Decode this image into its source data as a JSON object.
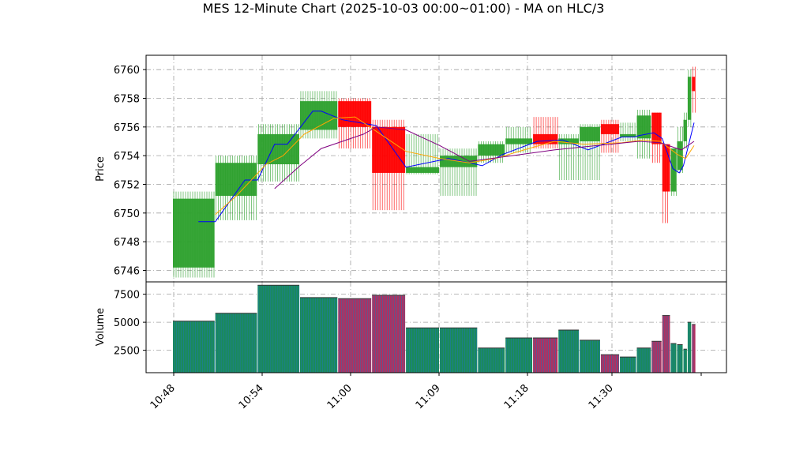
{
  "chart_data": {
    "type": "candlestick",
    "title": "MES 12-Minute Chart (2025-10-03 00:00~01:00) - MA on HLC/3",
    "x_tick_labels": [
      "10:48",
      "10:54",
      "11:00",
      "11:09",
      "11:18",
      "11:30"
    ],
    "price_panel": {
      "ylabel": "Price",
      "ylim": [
        6745.2,
        6761.0
      ],
      "yticks": [
        6746,
        6748,
        6750,
        6752,
        6754,
        6756,
        6758,
        6760
      ],
      "grid": true
    },
    "volume_panel": {
      "ylabel": "Volume",
      "ylim": [
        500,
        8600
      ],
      "yticks": [
        2500,
        5000,
        7500
      ],
      "yticklabels": [
        "2500",
        "5000",
        "7500"
      ],
      "grid": true
    },
    "colors": {
      "up": "#2ca02c",
      "down": "#ff0000",
      "volume_up": "#1a8a5a",
      "volume_down": "#b03060",
      "volume_edge": "#1f77b4",
      "ma_blue": "#0000ff",
      "ma_orange": "#ffa500",
      "ma_purple": "#800080",
      "grid": "#a0a0a0"
    },
    "candles": [
      {
        "t0": 0.0,
        "t1": 1.0,
        "open": 6746.2,
        "high": 6751.5,
        "low": 6745.5,
        "close": 6751.0,
        "volume": 5100
      },
      {
        "t0": 1.0,
        "t1": 2.0,
        "open": 6751.2,
        "high": 6754.0,
        "low": 6749.5,
        "close": 6753.5,
        "volume": 5800
      },
      {
        "t0": 2.0,
        "t1": 3.0,
        "open": 6753.4,
        "high": 6756.2,
        "low": 6752.2,
        "close": 6755.5,
        "volume": 8300
      },
      {
        "t0": 3.0,
        "t1": 3.9,
        "open": 6755.8,
        "high": 6758.5,
        "low": 6755.2,
        "close": 6757.8,
        "volume": 7200
      },
      {
        "t0": 3.9,
        "t1": 4.7,
        "open": 6757.8,
        "high": 6758.0,
        "low": 6754.5,
        "close": 6756.0,
        "volume": 7100
      },
      {
        "t0": 4.7,
        "t1": 5.5,
        "open": 6756.0,
        "high": 6756.5,
        "low": 6750.2,
        "close": 6752.8,
        "volume": 7400
      },
      {
        "t0": 5.5,
        "t1": 6.3,
        "open": 6752.8,
        "high": 6755.5,
        "low": 6752.7,
        "close": 6753.2,
        "volume": 4500
      },
      {
        "t0": 6.3,
        "t1": 7.2,
        "open": 6753.2,
        "high": 6754.5,
        "low": 6751.2,
        "close": 6754.0,
        "volume": 4500
      },
      {
        "t0": 7.2,
        "t1": 7.85,
        "open": 6754.0,
        "high": 6755.0,
        "low": 6753.5,
        "close": 6754.8,
        "volume": 2700
      },
      {
        "t0": 7.85,
        "t1": 8.5,
        "open": 6754.8,
        "high": 6756.0,
        "low": 6754.2,
        "close": 6755.2,
        "volume": 3600
      },
      {
        "t0": 8.5,
        "t1": 9.1,
        "open": 6755.5,
        "high": 6756.7,
        "low": 6754.5,
        "close": 6754.8,
        "volume": 3600
      },
      {
        "t0": 9.1,
        "t1": 9.6,
        "open": 6754.8,
        "high": 6755.5,
        "low": 6752.3,
        "close": 6755.2,
        "volume": 4300
      },
      {
        "t0": 9.6,
        "t1": 10.1,
        "open": 6755.0,
        "high": 6756.2,
        "low": 6752.3,
        "close": 6756.0,
        "volume": 3400
      },
      {
        "t0": 10.1,
        "t1": 10.55,
        "open": 6756.2,
        "high": 6756.5,
        "low": 6754.2,
        "close": 6755.5,
        "volume": 2100
      },
      {
        "t0": 10.55,
        "t1": 10.95,
        "open": 6755.3,
        "high": 6756.3,
        "low": 6755.0,
        "close": 6755.5,
        "volume": 1900
      },
      {
        "t0": 10.95,
        "t1": 11.3,
        "open": 6755.2,
        "high": 6757.2,
        "low": 6753.8,
        "close": 6756.8,
        "volume": 2700
      },
      {
        "t0": 11.3,
        "t1": 11.55,
        "open": 6757.0,
        "high": 6757.0,
        "low": 6753.5,
        "close": 6754.8,
        "volume": 3300
      },
      {
        "t0": 11.55,
        "t1": 11.75,
        "open": 6754.8,
        "high": 6754.8,
        "low": 6749.3,
        "close": 6751.5,
        "volume": 5600
      },
      {
        "t0": 11.75,
        "t1": 11.9,
        "open": 6751.5,
        "high": 6754.5,
        "low": 6751.2,
        "close": 6754.5,
        "volume": 3100
      },
      {
        "t0": 11.9,
        "t1": 12.05,
        "open": 6753.0,
        "high": 6756.0,
        "low": 6752.8,
        "close": 6755.0,
        "volume": 3000
      },
      {
        "t0": 12.05,
        "t1": 12.15,
        "open": 6755.0,
        "high": 6757.0,
        "low": 6754.5,
        "close": 6756.5,
        "volume": 2600
      },
      {
        "t0": 12.15,
        "t1": 12.25,
        "open": 6756.5,
        "high": 6760.0,
        "low": 6756.0,
        "close": 6759.5,
        "volume": 5000
      },
      {
        "t0": 12.25,
        "t1": 12.35,
        "open": 6759.5,
        "high": 6760.2,
        "low": 6757.0,
        "close": 6758.5,
        "volume": 4800
      }
    ],
    "ma_series": [
      {
        "color": "ma_blue",
        "points": [
          [
            0.6,
            6749.4
          ],
          [
            1.0,
            6749.4
          ],
          [
            1.7,
            6752.3
          ],
          [
            2.0,
            6752.3
          ],
          [
            2.4,
            6754.8
          ],
          [
            2.7,
            6754.8
          ],
          [
            3.3,
            6757.1
          ],
          [
            3.5,
            6757.1
          ],
          [
            4.0,
            6756.5
          ],
          [
            4.8,
            6756.1
          ],
          [
            5.5,
            6753.2
          ],
          [
            6.5,
            6753.8
          ],
          [
            7.0,
            6753.5
          ],
          [
            7.3,
            6753.3
          ],
          [
            7.8,
            6754.1
          ],
          [
            8.6,
            6755.0
          ],
          [
            9.2,
            6755.1
          ],
          [
            9.8,
            6754.4
          ],
          [
            10.6,
            6755.3
          ],
          [
            10.9,
            6755.3
          ],
          [
            11.0,
            6755.4
          ],
          [
            11.35,
            6755.6
          ],
          [
            11.55,
            6755.2
          ],
          [
            11.8,
            6753.1
          ],
          [
            11.95,
            6752.8
          ],
          [
            12.05,
            6753.3
          ],
          [
            12.3,
            6756.3
          ]
        ]
      },
      {
        "color": "ma_orange",
        "points": [
          [
            1.0,
            6749.9
          ],
          [
            1.5,
            6751.2
          ],
          [
            2.2,
            6753.4
          ],
          [
            2.6,
            6754.0
          ],
          [
            3.1,
            6755.5
          ],
          [
            3.8,
            6756.6
          ],
          [
            4.3,
            6756.7
          ],
          [
            4.8,
            6755.7
          ],
          [
            5.5,
            6754.3
          ],
          [
            6.3,
            6753.8
          ],
          [
            7.0,
            6753.5
          ],
          [
            7.6,
            6753.8
          ],
          [
            8.4,
            6754.5
          ],
          [
            9.0,
            6755.0
          ],
          [
            9.7,
            6754.8
          ],
          [
            10.6,
            6754.9
          ],
          [
            11.1,
            6755.1
          ],
          [
            11.5,
            6755.0
          ],
          [
            11.9,
            6754.1
          ],
          [
            12.1,
            6753.8
          ],
          [
            12.3,
            6754.7
          ]
        ]
      },
      {
        "color": "ma_purple",
        "points": [
          [
            2.4,
            6751.7
          ],
          [
            2.7,
            6752.5
          ],
          [
            3.0,
            6753.3
          ],
          [
            3.5,
            6754.5
          ],
          [
            4.5,
            6755.5
          ],
          [
            4.8,
            6756.0
          ],
          [
            5.5,
            6755.8
          ],
          [
            6.3,
            6754.7
          ],
          [
            7.0,
            6753.6
          ],
          [
            8.0,
            6754.0
          ],
          [
            9.0,
            6754.4
          ],
          [
            10.0,
            6754.7
          ],
          [
            11.0,
            6755.0
          ],
          [
            11.5,
            6754.9
          ],
          [
            12.0,
            6754.4
          ],
          [
            12.3,
            6755.0
          ]
        ]
      }
    ]
  }
}
